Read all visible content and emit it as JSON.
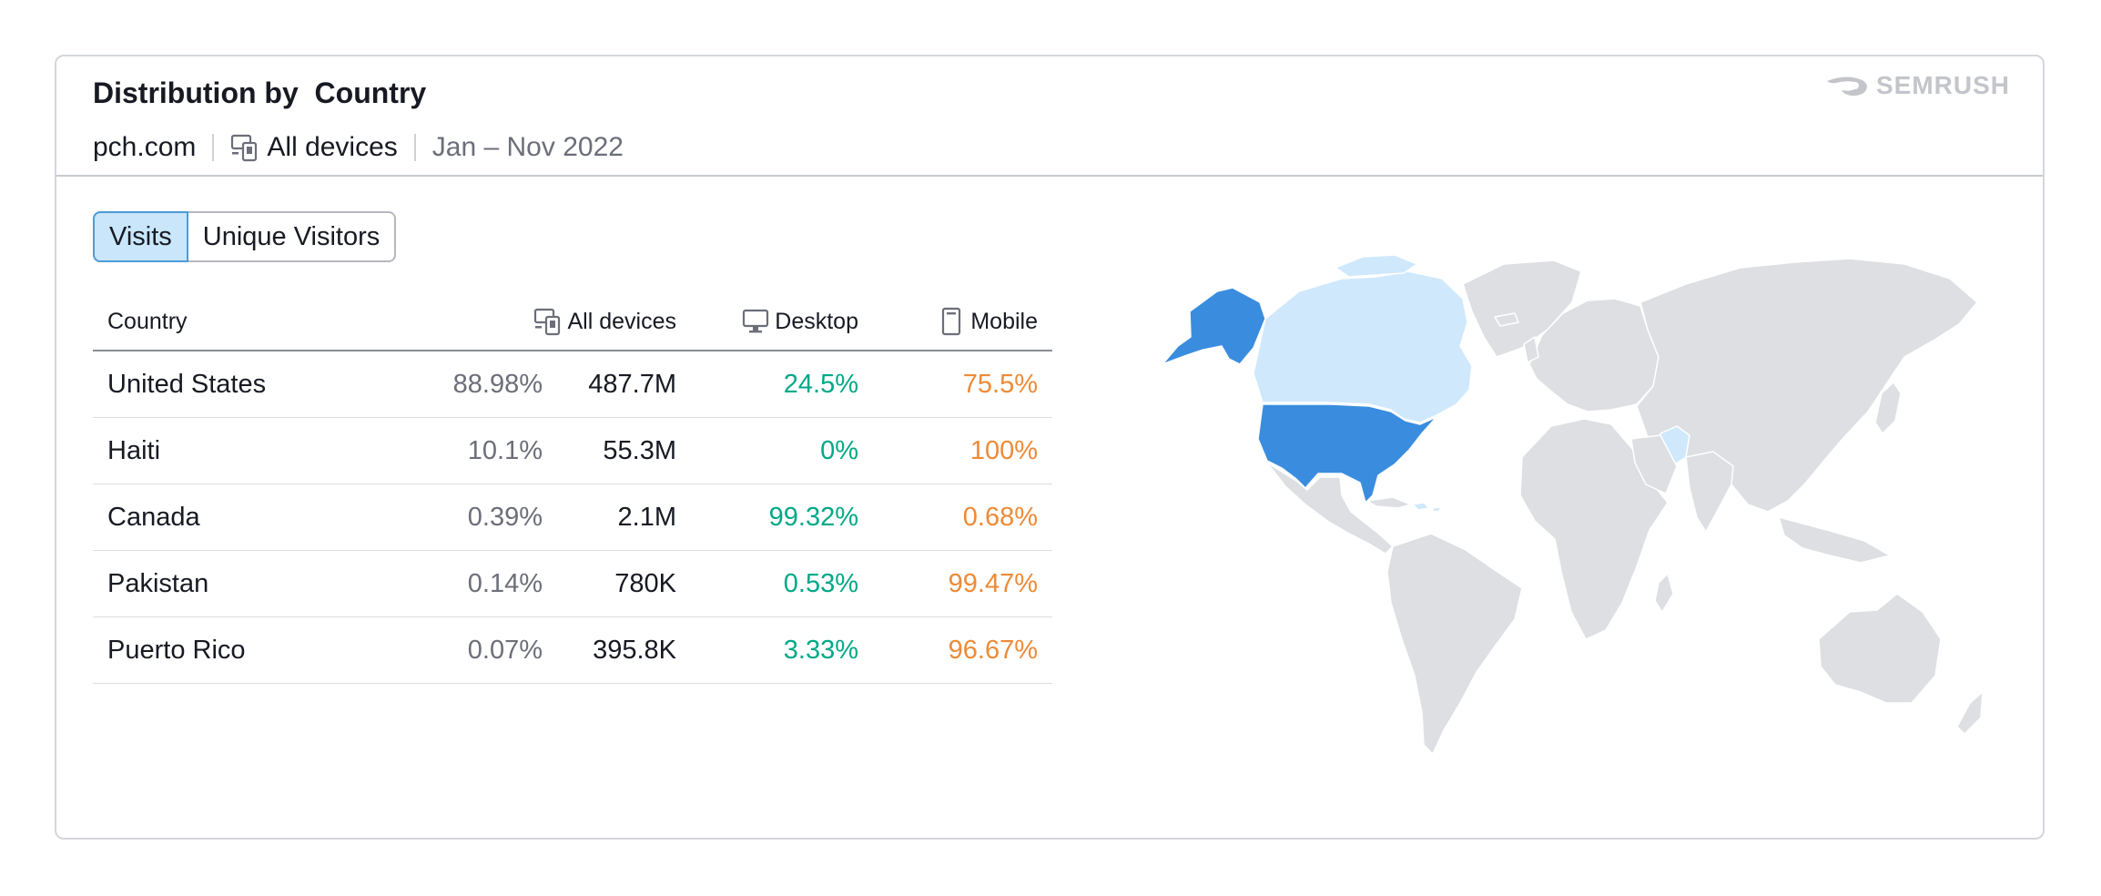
{
  "header": {
    "title": "Distribution by  Country",
    "domain": "pch.com",
    "devices_label": "All devices",
    "date_range": "Jan – Nov 2022",
    "brand": "SEMRUSH"
  },
  "tabs": [
    {
      "label": "Visits",
      "active": true
    },
    {
      "label": "Unique Visitors",
      "active": false
    }
  ],
  "table": {
    "columns": {
      "country": "Country",
      "all_devices": "All devices",
      "desktop": "Desktop",
      "mobile": "Mobile"
    },
    "rows": [
      {
        "country": "United States",
        "share": "88.98%",
        "visits": "487.7M",
        "desktop": "24.5%",
        "mobile": "75.5%"
      },
      {
        "country": "Haiti",
        "share": "10.1%",
        "visits": "55.3M",
        "desktop": "0%",
        "mobile": "100%"
      },
      {
        "country": "Canada",
        "share": "0.39%",
        "visits": "2.1M",
        "desktop": "99.32%",
        "mobile": "0.68%"
      },
      {
        "country": "Pakistan",
        "share": "0.14%",
        "visits": "780K",
        "desktop": "0.53%",
        "mobile": "99.47%"
      },
      {
        "country": "Puerto Rico",
        "share": "0.07%",
        "visits": "395.8K",
        "desktop": "3.33%",
        "mobile": "96.67%"
      }
    ]
  },
  "map": {
    "colors": {
      "high": "#3a8dde",
      "low": "#cfe8fc",
      "none": "#dddfe3"
    }
  }
}
